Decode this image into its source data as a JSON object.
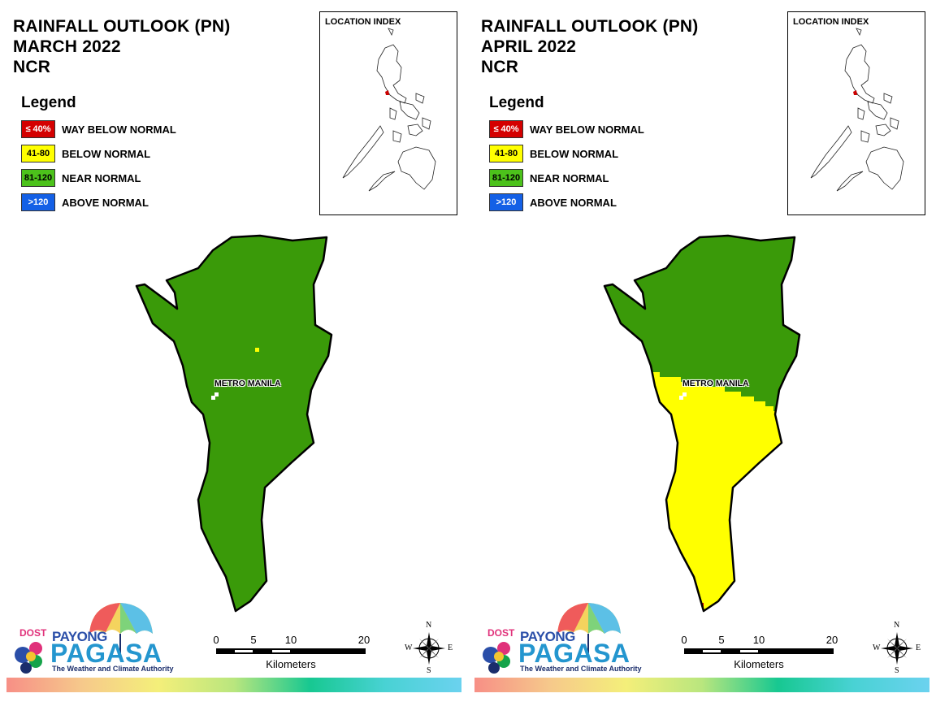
{
  "panels": [
    {
      "title": [
        "RAINFALL OUTLOOK (PN)",
        "MARCH 2022",
        "NCR"
      ],
      "legend": {
        "title": "Legend",
        "items": [
          {
            "range": "≤ 40%",
            "label": "WAY BELOW NORMAL",
            "color": "#d40000",
            "text_color": "#ffffff"
          },
          {
            "range": "41-80",
            "label": "BELOW NORMAL",
            "color": "#ffff00",
            "text_color": "#000000"
          },
          {
            "range": "81-120",
            "label": "NEAR NORMAL",
            "color": "#4cc21b",
            "text_color": "#000000"
          },
          {
            "range": ">120",
            "label": "ABOVE NORMAL",
            "color": "#1460e6",
            "text_color": "#ffffff"
          }
        ]
      },
      "location_index": {
        "title": "LOCATION INDEX"
      },
      "map": {
        "place": "METRO MANILA",
        "fill_categories": [
          "NEAR NORMAL"
        ],
        "fill_color": "#3a9a09"
      },
      "logo": {
        "dost": "DOST",
        "payong": "PAYONG",
        "pagasa": "PAGASA",
        "tagline": "The Weather and Climate Authority"
      },
      "scale": {
        "ticks": [
          "0",
          "5",
          "10",
          "20"
        ],
        "unit": "Kilometers"
      },
      "compass": {
        "n": "N",
        "e": "E",
        "s": "S",
        "w": "W"
      }
    },
    {
      "title": [
        "RAINFALL OUTLOOK (PN)",
        "APRIL 2022",
        "NCR"
      ],
      "legend": {
        "title": "Legend",
        "items": [
          {
            "range": "≤ 40%",
            "label": "WAY BELOW NORMAL",
            "color": "#d40000",
            "text_color": "#ffffff"
          },
          {
            "range": "41-80",
            "label": "BELOW NORMAL",
            "color": "#ffff00",
            "text_color": "#000000"
          },
          {
            "range": "81-120",
            "label": "NEAR NORMAL",
            "color": "#4cc21b",
            "text_color": "#000000"
          },
          {
            "range": ">120",
            "label": "ABOVE NORMAL",
            "color": "#1460e6",
            "text_color": "#ffffff"
          }
        ]
      },
      "location_index": {
        "title": "LOCATION INDEX"
      },
      "map": {
        "place": "METRO MANILA",
        "fill_categories": [
          "NEAR NORMAL",
          "BELOW NORMAL"
        ],
        "fill_color": "#3a9a09",
        "south_color": "#ffff00"
      },
      "logo": {
        "dost": "DOST",
        "payong": "PAYONG",
        "pagasa": "PAGASA",
        "tagline": "The Weather and Climate Authority"
      },
      "scale": {
        "ticks": [
          "0",
          "5",
          "10",
          "20"
        ],
        "unit": "Kilometers"
      },
      "compass": {
        "n": "N",
        "e": "E",
        "s": "S",
        "w": "W"
      }
    }
  ]
}
